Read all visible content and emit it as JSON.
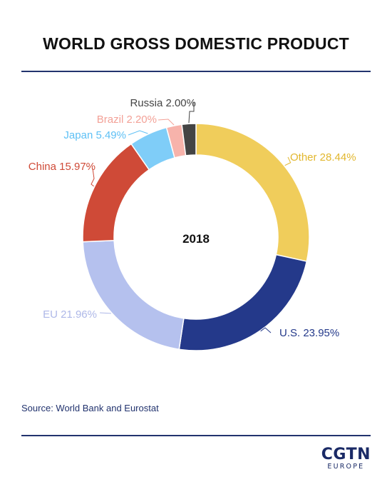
{
  "title": "WORLD GROSS DOMESTIC PRODUCT",
  "source": "Source: World Bank and Eurostat",
  "logo": {
    "main": "CGTN",
    "sub": "EUROPE"
  },
  "chart_data": {
    "type": "pie",
    "center_label": "2018",
    "slices": [
      {
        "label": "Other 28.44%",
        "value": 28.44,
        "color": "#f0cd5b"
      },
      {
        "label": "U.S. 23.95%",
        "value": 23.95,
        "color": "#24398a"
      },
      {
        "label": "EU 21.96%",
        "value": 21.96,
        "color": "#b5c1ee"
      },
      {
        "label": "China 15.97%",
        "value": 15.97,
        "color": "#cf4a37"
      },
      {
        "label": "Japan 5.49%",
        "value": 5.49,
        "color": "#7fcdf8"
      },
      {
        "label": "Brazil 2.20%",
        "value": 2.2,
        "color": "#f7b3ab"
      },
      {
        "label": "Russia 2.00%",
        "value": 2.0,
        "color": "#444444"
      }
    ]
  }
}
